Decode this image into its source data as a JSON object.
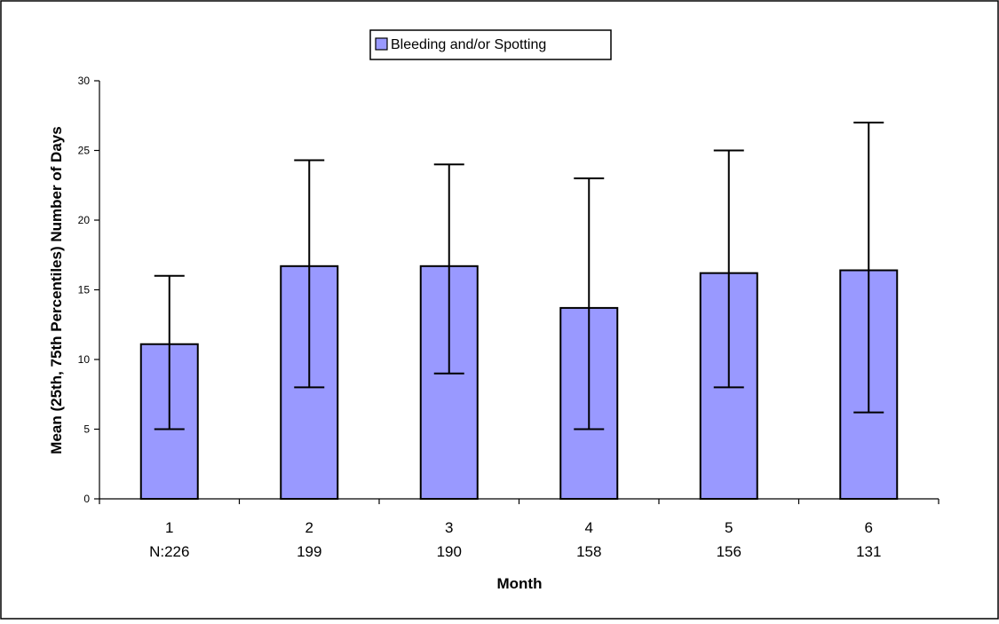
{
  "chart_data": {
    "type": "bar",
    "categories": [
      "1",
      "2",
      "3",
      "4",
      "5",
      "6"
    ],
    "category_sublabels": [
      "N:226",
      "199",
      "190",
      "158",
      "156",
      "131"
    ],
    "series": [
      {
        "name": "Bleeding and/or Spotting",
        "values": [
          11.1,
          16.7,
          16.7,
          13.7,
          16.2,
          16.4
        ],
        "error_low": [
          5,
          8,
          9,
          5,
          8,
          6.2
        ],
        "error_high": [
          16,
          24.3,
          24,
          23,
          25,
          27
        ]
      }
    ],
    "xlabel": "Month",
    "ylabel": "Mean (25th, 75th Percentiles) Number of Days",
    "ylim": [
      0,
      30
    ],
    "yticks": [
      0,
      5,
      10,
      15,
      20,
      25,
      30
    ],
    "grid": false,
    "legend_position": "top-center",
    "colors": {
      "bar_fill": "#9999ff",
      "bar_stroke": "#000000",
      "axis": "#000000",
      "text": "#000000"
    }
  }
}
